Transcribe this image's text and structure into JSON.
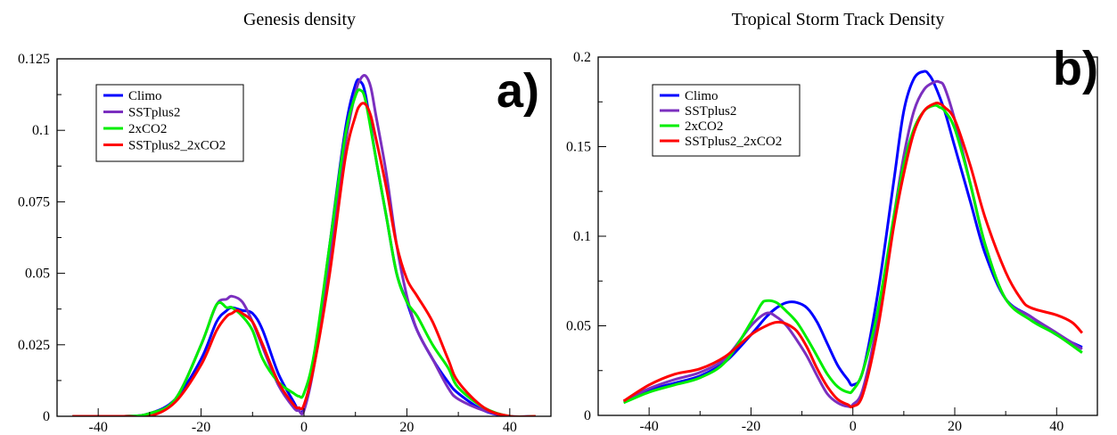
{
  "chart_data": [
    {
      "type": "line",
      "title": "Genesis density",
      "panel_label": "a)",
      "xlim": [
        -48,
        48
      ],
      "ylim": [
        0,
        0.125
      ],
      "xticks": [
        -40,
        -20,
        0,
        20,
        40
      ],
      "xtick_labels": [
        "-40",
        "-20",
        "0",
        "20",
        "40"
      ],
      "yticks": [
        0,
        0.025,
        0.05,
        0.075,
        0.1,
        0.125
      ],
      "ytick_labels": [
        "0",
        "0.025",
        "0.05",
        "0.075",
        "0.1",
        "0.125"
      ],
      "legend_position": "top-left",
      "series": [
        {
          "name": "Climo",
          "color": "#0000ff",
          "x": [
            -45,
            -35,
            -30,
            -25,
            -20,
            -17,
            -15,
            -14,
            -12,
            -10,
            -8,
            -5,
            -2,
            -1,
            0,
            2,
            5,
            8,
            10,
            11,
            12,
            14,
            16,
            18,
            20,
            22,
            25,
            28,
            30,
            35,
            40,
            45
          ],
          "y": [
            0,
            0,
            0.001,
            0.006,
            0.02,
            0.033,
            0.037,
            0.038,
            0.037,
            0.036,
            0.03,
            0.015,
            0.005,
            0.002,
            0.003,
            0.02,
            0.06,
            0.1,
            0.116,
            0.117,
            0.112,
            0.09,
            0.07,
            0.05,
            0.04,
            0.03,
            0.02,
            0.012,
            0.008,
            0.002,
            0,
            0
          ]
        },
        {
          "name": "SSTplus2",
          "color": "#7b2fbf",
          "x": [
            -45,
            -35,
            -30,
            -25,
            -20,
            -17,
            -15,
            -14,
            -12,
            -10,
            -8,
            -5,
            -2,
            -1,
            0,
            2,
            5,
            8,
            10,
            11,
            12,
            13,
            14,
            16,
            18,
            20,
            22,
            25,
            28,
            30,
            35,
            40,
            45
          ],
          "y": [
            0,
            0,
            0.001,
            0.006,
            0.025,
            0.039,
            0.041,
            0.042,
            0.04,
            0.033,
            0.024,
            0.011,
            0.003,
            0.002,
            0.002,
            0.018,
            0.055,
            0.095,
            0.113,
            0.118,
            0.119,
            0.115,
            0.105,
            0.085,
            0.06,
            0.042,
            0.03,
            0.02,
            0.01,
            0.006,
            0.002,
            0,
            0
          ]
        },
        {
          "name": "2xCO2",
          "color": "#00ee00",
          "x": [
            -45,
            -35,
            -30,
            -25,
            -20,
            -17,
            -15,
            -14,
            -12,
            -10,
            -8,
            -5,
            -2,
            -1,
            0,
            2,
            5,
            8,
            10,
            11,
            12,
            14,
            16,
            18,
            20,
            22,
            25,
            28,
            30,
            35,
            40,
            45
          ],
          "y": [
            0,
            0,
            0.001,
            0.006,
            0.025,
            0.039,
            0.038,
            0.038,
            0.035,
            0.03,
            0.02,
            0.012,
            0.008,
            0.007,
            0.008,
            0.022,
            0.06,
            0.098,
            0.112,
            0.114,
            0.11,
            0.09,
            0.07,
            0.05,
            0.04,
            0.035,
            0.025,
            0.017,
            0.01,
            0.003,
            0,
            0
          ]
        },
        {
          "name": "SSTplus2_2xCO2",
          "color": "#ff0000",
          "x": [
            -45,
            -35,
            -30,
            -25,
            -20,
            -17,
            -15,
            -14,
            -13,
            -12,
            -10,
            -8,
            -5,
            -2,
            -1,
            0,
            2,
            5,
            8,
            10,
            11,
            12,
            13,
            14,
            16,
            18,
            20,
            22,
            25,
            28,
            30,
            35,
            40,
            45
          ],
          "y": [
            0,
            0,
            0,
            0.005,
            0.018,
            0.03,
            0.035,
            0.036,
            0.037,
            0.036,
            0.033,
            0.025,
            0.012,
            0.004,
            0.003,
            0.004,
            0.018,
            0.05,
            0.09,
            0.105,
            0.109,
            0.109,
            0.105,
            0.097,
            0.08,
            0.06,
            0.048,
            0.042,
            0.033,
            0.02,
            0.012,
            0.003,
            0,
            0
          ]
        }
      ]
    },
    {
      "type": "line",
      "title": "Tropical Storm Track Density",
      "panel_label": "b)",
      "xlim": [
        -50,
        48
      ],
      "ylim": [
        0,
        0.2
      ],
      "xticks": [
        -40,
        -20,
        0,
        20,
        40
      ],
      "xtick_labels": [
        "-40",
        "-20",
        "0",
        "20",
        "40"
      ],
      "yticks": [
        0,
        0.05,
        0.1,
        0.15,
        0.2
      ],
      "ytick_labels": [
        "0",
        "0.05",
        "0.1",
        "0.15",
        "0.2"
      ],
      "legend_position": "top-left",
      "series": [
        {
          "name": "Climo",
          "color": "#0000ff",
          "x": [
            -45,
            -40,
            -35,
            -30,
            -25,
            -20,
            -17,
            -15,
            -13,
            -11,
            -9,
            -7,
            -5,
            -3,
            -1,
            0,
            2,
            5,
            8,
            10,
            12,
            14,
            15,
            16,
            18,
            20,
            23,
            26,
            30,
            35,
            40,
            45
          ],
          "y": [
            0.008,
            0.014,
            0.018,
            0.022,
            0.03,
            0.045,
            0.055,
            0.06,
            0.063,
            0.063,
            0.06,
            0.052,
            0.04,
            0.028,
            0.02,
            0.017,
            0.025,
            0.07,
            0.13,
            0.17,
            0.188,
            0.192,
            0.19,
            0.185,
            0.17,
            0.15,
            0.12,
            0.09,
            0.065,
            0.055,
            0.045,
            0.038
          ]
        },
        {
          "name": "SSTplus2",
          "color": "#7b2fbf",
          "x": [
            -45,
            -40,
            -35,
            -30,
            -25,
            -20,
            -17,
            -15,
            -13,
            -11,
            -9,
            -7,
            -5,
            -3,
            -1,
            0,
            2,
            5,
            8,
            10,
            12,
            14,
            16,
            17,
            18,
            20,
            23,
            26,
            30,
            35,
            40,
            45
          ],
          "y": [
            0.008,
            0.015,
            0.02,
            0.024,
            0.032,
            0.05,
            0.057,
            0.055,
            0.05,
            0.042,
            0.033,
            0.022,
            0.012,
            0.007,
            0.005,
            0.006,
            0.015,
            0.055,
            0.11,
            0.145,
            0.17,
            0.182,
            0.186,
            0.186,
            0.183,
            0.165,
            0.13,
            0.095,
            0.065,
            0.055,
            0.046,
            0.037
          ]
        },
        {
          "name": "2xCO2",
          "color": "#00ee00",
          "x": [
            -45,
            -40,
            -35,
            -30,
            -25,
            -20,
            -18,
            -17,
            -15,
            -13,
            -11,
            -9,
            -7,
            -5,
            -3,
            -1,
            0,
            2,
            5,
            8,
            10,
            12,
            14,
            16,
            17,
            18,
            20,
            23,
            26,
            30,
            35,
            40,
            45
          ],
          "y": [
            0.007,
            0.013,
            0.017,
            0.021,
            0.03,
            0.052,
            0.062,
            0.064,
            0.063,
            0.058,
            0.052,
            0.043,
            0.033,
            0.023,
            0.016,
            0.013,
            0.014,
            0.025,
            0.06,
            0.11,
            0.14,
            0.16,
            0.17,
            0.173,
            0.172,
            0.17,
            0.16,
            0.13,
            0.095,
            0.065,
            0.053,
            0.045,
            0.035
          ]
        },
        {
          "name": "SSTplus2_2xCO2",
          "color": "#ff0000",
          "x": [
            -45,
            -40,
            -35,
            -30,
            -25,
            -20,
            -17,
            -15,
            -13,
            -11,
            -9,
            -7,
            -5,
            -3,
            -1,
            0,
            2,
            5,
            8,
            10,
            12,
            14,
            16,
            17,
            18,
            20,
            23,
            26,
            30,
            33,
            35,
            40,
            43,
            45
          ],
          "y": [
            0.008,
            0.017,
            0.023,
            0.026,
            0.033,
            0.045,
            0.05,
            0.052,
            0.051,
            0.047,
            0.038,
            0.026,
            0.016,
            0.009,
            0.006,
            0.005,
            0.012,
            0.05,
            0.105,
            0.135,
            0.158,
            0.17,
            0.174,
            0.174,
            0.172,
            0.165,
            0.14,
            0.11,
            0.08,
            0.065,
            0.06,
            0.056,
            0.052,
            0.046
          ]
        }
      ]
    }
  ]
}
